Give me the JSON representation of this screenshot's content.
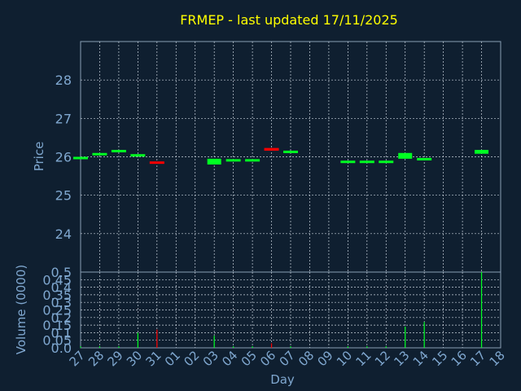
{
  "chart_data": [
    {
      "type": "candlestick",
      "title": "FRMEP - last updated 17/11/2025",
      "ylabel": "Price",
      "ylim": [
        23.0,
        29.0
      ],
      "yticks": [
        24,
        25,
        26,
        27,
        28
      ],
      "grid": true,
      "series": [
        {
          "x": "27",
          "open": 25.98,
          "close": 26.0,
          "dir": "up"
        },
        {
          "x": "28",
          "open": 26.08,
          "close": 26.1,
          "dir": "up"
        },
        {
          "x": "29",
          "open": 26.15,
          "close": 26.18,
          "dir": "up"
        },
        {
          "x": "30",
          "open": 26.05,
          "close": 26.07,
          "dir": "up"
        },
        {
          "x": "31",
          "open": 25.88,
          "close": 25.84,
          "dir": "down"
        },
        {
          "x": "03",
          "open": 25.8,
          "close": 25.95,
          "dir": "up"
        },
        {
          "x": "04",
          "open": 25.92,
          "close": 25.94,
          "dir": "up"
        },
        {
          "x": "05",
          "open": 25.92,
          "close": 25.94,
          "dir": "up"
        },
        {
          "x": "06",
          "open": 26.23,
          "close": 26.16,
          "dir": "down"
        },
        {
          "x": "07",
          "open": 26.14,
          "close": 26.16,
          "dir": "up"
        },
        {
          "x": "10",
          "open": 25.88,
          "close": 25.9,
          "dir": "up"
        },
        {
          "x": "11",
          "open": 25.88,
          "close": 25.9,
          "dir": "up"
        },
        {
          "x": "12",
          "open": 25.88,
          "close": 25.9,
          "dir": "up"
        },
        {
          "x": "13",
          "open": 25.95,
          "close": 26.1,
          "dir": "up"
        },
        {
          "x": "14",
          "open": 25.95,
          "close": 25.97,
          "dir": "up"
        },
        {
          "x": "17",
          "open": 26.08,
          "close": 26.18,
          "dir": "up"
        }
      ]
    },
    {
      "type": "bar",
      "ylabel": "Volume (0000)",
      "xlabel": "Day",
      "ylim": [
        0,
        0.5
      ],
      "yticks": [
        "0.0",
        "0.05",
        "0.1",
        "0.15",
        "0.2",
        "0.25",
        "0.3",
        "0.35",
        "0.4",
        "0.45",
        "0.5"
      ],
      "categories": [
        "27",
        "28",
        "29",
        "30",
        "31",
        "01",
        "02",
        "03",
        "04",
        "05",
        "06",
        "07",
        "08",
        "09",
        "10",
        "11",
        "12",
        "13",
        "14",
        "15",
        "16",
        "17",
        "18"
      ],
      "bars": [
        {
          "x": "27",
          "value": 0.01,
          "dir": "up"
        },
        {
          "x": "28",
          "value": 0.01,
          "dir": "up"
        },
        {
          "x": "29",
          "value": 0.01,
          "dir": "up"
        },
        {
          "x": "30",
          "value": 0.1,
          "dir": "up"
        },
        {
          "x": "31",
          "value": 0.12,
          "dir": "down"
        },
        {
          "x": "03",
          "value": 0.08,
          "dir": "up"
        },
        {
          "x": "04",
          "value": 0.01,
          "dir": "up"
        },
        {
          "x": "05",
          "value": 0.01,
          "dir": "up"
        },
        {
          "x": "06",
          "value": 0.03,
          "dir": "down"
        },
        {
          "x": "07",
          "value": 0.01,
          "dir": "up"
        },
        {
          "x": "10",
          "value": 0.01,
          "dir": "up"
        },
        {
          "x": "11",
          "value": 0.01,
          "dir": "up"
        },
        {
          "x": "12",
          "value": 0.01,
          "dir": "up"
        },
        {
          "x": "13",
          "value": 0.14,
          "dir": "up"
        },
        {
          "x": "14",
          "value": 0.17,
          "dir": "up"
        },
        {
          "x": "17",
          "value": 0.5,
          "dir": "up"
        }
      ]
    }
  ],
  "colors": {
    "background": "#0f1f30",
    "title": "#ffff00",
    "axis_text": "#7fa7cf",
    "frame": "#8a9fb5",
    "grid": "#c8d2dc",
    "up": "#00ff22",
    "down": "#ff0000"
  }
}
